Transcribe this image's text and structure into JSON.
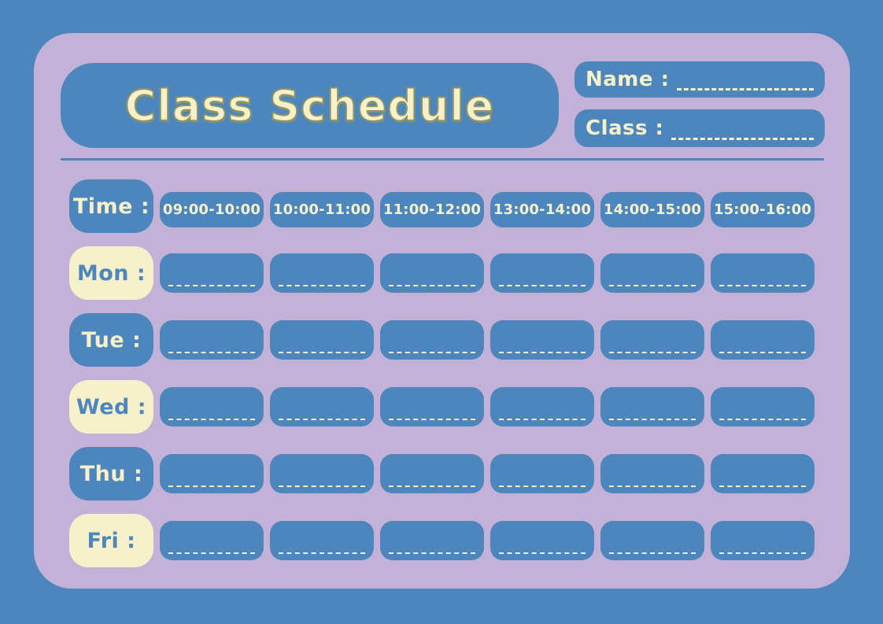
{
  "header": {
    "title": "Class Schedule",
    "name_label": "Name :",
    "class_label": "Class :"
  },
  "schedule": {
    "time_label": "Time :",
    "time_slots": [
      "09:00-10:00",
      "10:00-11:00",
      "11:00-12:00",
      "13:00-14:00",
      "14:00-15:00",
      "15:00-16:00"
    ],
    "days": [
      {
        "label": "Mon :",
        "variant": "cream"
      },
      {
        "label": "Tue :",
        "variant": "blue"
      },
      {
        "label": "Wed :",
        "variant": "cream"
      },
      {
        "label": "Thu :",
        "variant": "blue"
      },
      {
        "label": "Fri :",
        "variant": "cream"
      }
    ],
    "cells_per_day": 6
  },
  "colors": {
    "background_blue": "#4C86BC",
    "card_lavender": "#C3B2D8",
    "box_blue": "#4C86BC",
    "cream": "#F6F1CB",
    "title_outline": "#8F9468"
  }
}
